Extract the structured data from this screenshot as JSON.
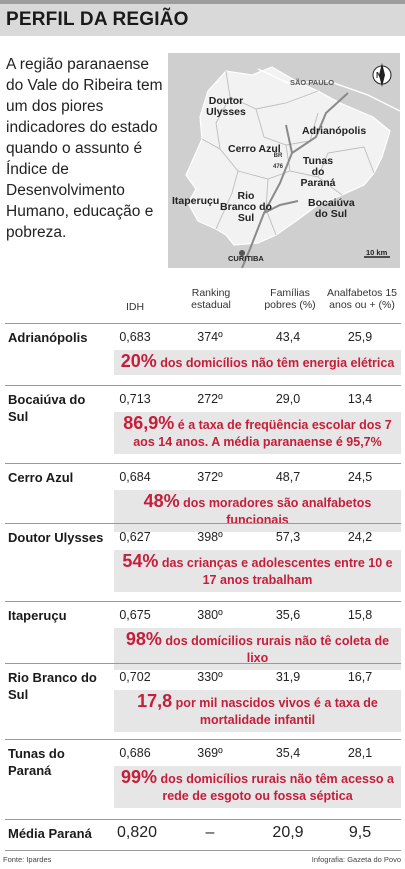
{
  "header": {
    "title": "PERFIL DA REGIÃO"
  },
  "intro": {
    "text": "A região paranaense do Vale do Ribeira tem um dos piores indicadores do estado quando o assunto é Índice de Desenvolvimento Humano, educação e pobreza."
  },
  "map": {
    "labels": {
      "sao_paulo": "SÃO PAULO",
      "doutor_ulysses": "Doutor Ulysses",
      "adrianopolis": "Adrianópolis",
      "br476": "BR 476",
      "cerro_azul": "Cerro Azul",
      "tunas": "Tunas do Paraná",
      "itaperucu": "Itaperuçu",
      "rio_branco": "Rio Branco do Sul",
      "bocaiuva": "Bocaiúva do Sul",
      "curitiba": "CURITIBA",
      "scale": "10 km",
      "north": "N"
    },
    "colors": {
      "land": "#cfcfcf",
      "highlight": "#f2f2f2",
      "road": "#8a8a8a",
      "border": "#ffffff"
    },
    "icons": [
      "compass-icon"
    ]
  },
  "table": {
    "headers": {
      "idh": "IDH",
      "ranking": "Ranking estadual",
      "familias": "Famílias pobres (%)",
      "analfabetos": "Analfabetos 15 anos ou + (%)"
    },
    "rows": [
      {
        "city": "Adrianópolis",
        "idh": "0,683",
        "ranking": "374º",
        "familias": "43,4",
        "analfabetos": "25,9",
        "callout_big": "20%",
        "callout_text": "dos domicílios não têm energia elétrica"
      },
      {
        "city": "Bocaiúva do Sul",
        "idh": "0,713",
        "ranking": "272º",
        "familias": "29,0",
        "analfabetos": "13,4",
        "callout_big": "86,9%",
        "callout_text": "é a taxa de freqüência escolar dos 7 aos 14 anos. A média paranaense é 95,7%"
      },
      {
        "city": "Cerro Azul",
        "idh": "0,684",
        "ranking": "372º",
        "familias": "48,7",
        "analfabetos": "24,5",
        "callout_big": "48%",
        "callout_text": "dos moradores são analfabetos funcionais"
      },
      {
        "city": "Doutor Ulysses",
        "idh": "0,627",
        "ranking": "398º",
        "familias": "57,3",
        "analfabetos": "24,2",
        "callout_big": "54%",
        "callout_text": "das crianças e adolescentes entre 10 e 17 anos trabalham"
      },
      {
        "city": "Itaperuçu",
        "idh": "0,675",
        "ranking": "380º",
        "familias": "35,6",
        "analfabetos": "15,8",
        "callout_big": "98%",
        "callout_text": "dos domícilios rurais não tê coleta de lixo"
      },
      {
        "city": "Rio Branco do Sul",
        "idh": "0,702",
        "ranking": "330º",
        "familias": "31,9",
        "analfabetos": "16,7",
        "callout_big": "17,8",
        "callout_text": "por mil nascidos vivos é a taxa de mortalidade infantil"
      },
      {
        "city": "Tunas do Paraná",
        "idh": "0,686",
        "ranking": "369º",
        "familias": "35,4",
        "analfabetos": "28,1",
        "callout_big": "99%",
        "callout_text": "dos domicílios rurais não têm acesso a rede de esgoto ou fossa séptica"
      }
    ],
    "footer": {
      "city": "Média Paraná",
      "idh": "0,820",
      "ranking": "–",
      "familias": "20,9",
      "analfabetos": "9,5"
    },
    "accent_color": "#c41e3a"
  },
  "credits": {
    "source": "Fonte: Ipardes",
    "infographic": "Infografia: Gazeta do Povo"
  }
}
